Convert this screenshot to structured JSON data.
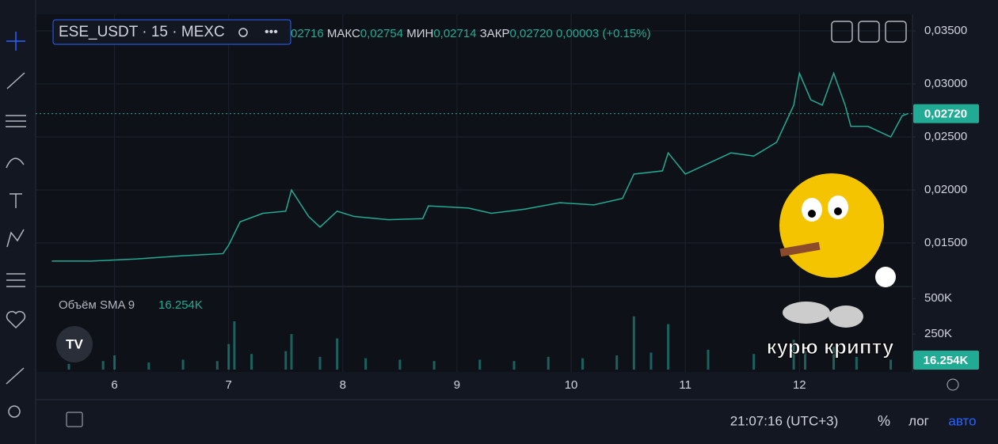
{
  "header": {
    "symbol": "ESE_USDT · 15 · MEXC",
    "ohlc": [
      "02716",
      "МАКС",
      "0,02754",
      "МИН",
      "0,02714",
      "ЗАКР",
      "0,02720",
      "0,00003 (+0.15%)"
    ]
  },
  "chart_data": [
    {
      "type": "line",
      "x": [
        5.45,
        5.8,
        6.2,
        6.6,
        6.95,
        7.0,
        7.1,
        7.3,
        7.5,
        7.55,
        7.7,
        7.8,
        7.95,
        8.1,
        8.4,
        8.7,
        8.75,
        9.1,
        9.3,
        9.6,
        9.9,
        10.2,
        10.45,
        10.55,
        10.8,
        10.85,
        11.0,
        11.2,
        11.4,
        11.6,
        11.8,
        11.95,
        12.0,
        12.1,
        12.2,
        12.3,
        12.4,
        12.45,
        12.6,
        12.8,
        12.9,
        12.95
      ],
      "series": [
        {
          "name": "ESE_USDT",
          "color": "#22ab94",
          "values": [
            0.0133,
            0.0133,
            0.0135,
            0.0138,
            0.014,
            0.0148,
            0.017,
            0.0178,
            0.018,
            0.02,
            0.0175,
            0.0165,
            0.018,
            0.0175,
            0.0172,
            0.0173,
            0.0185,
            0.0183,
            0.0178,
            0.0182,
            0.0188,
            0.0186,
            0.0192,
            0.0215,
            0.0218,
            0.0235,
            0.0215,
            0.0225,
            0.0235,
            0.0232,
            0.0245,
            0.028,
            0.031,
            0.0285,
            0.028,
            0.031,
            0.028,
            0.026,
            0.026,
            0.025,
            0.027,
            0.0272
          ]
        }
      ],
      "xlim": [
        5.42,
        12.99
      ],
      "xticks": [
        6,
        7,
        8,
        9,
        10,
        11,
        12
      ],
      "ylim": [
        0.0109,
        0.03657
      ],
      "yticks": [
        {
          "value": 0.015,
          "label": "0,01500"
        },
        {
          "value": 0.02,
          "label": "0,02000"
        },
        {
          "value": 0.025,
          "label": "0,02500"
        },
        {
          "value": 0.03,
          "label": "0,03000"
        },
        {
          "value": 0.035,
          "label": "0,03500"
        }
      ],
      "marker": {
        "value": 0.0272,
        "label": "0,02720"
      },
      "grid": true
    },
    {
      "type": "bar",
      "x": [
        5.6,
        5.9,
        6.0,
        6.3,
        6.6,
        6.9,
        7.0,
        7.05,
        7.2,
        7.5,
        7.55,
        7.8,
        7.95,
        8.2,
        8.5,
        8.8,
        9.2,
        9.5,
        9.8,
        10.1,
        10.4,
        10.55,
        10.7,
        10.85,
        11.2,
        11.6,
        11.95,
        12.05,
        12.3,
        12.5,
        12.8
      ],
      "series": [
        {
          "name": "Объём SMA 9",
          "color": "#26a69a",
          "values": [
            40000,
            60000,
            100000,
            50000,
            70000,
            60000,
            180000,
            340000,
            110000,
            130000,
            250000,
            90000,
            220000,
            80000,
            70000,
            60000,
            70000,
            60000,
            90000,
            80000,
            100000,
            375000,
            120000,
            320000,
            140000,
            110000,
            210000,
            130000,
            160000,
            90000,
            70000
          ]
        }
      ],
      "xlim": [
        5.42,
        12.99
      ],
      "ylim": [
        0,
        585000
      ],
      "yticks": [
        {
          "value": 250000,
          "label": "250K"
        },
        {
          "value": 500000,
          "label": "500K"
        }
      ],
      "marker": {
        "value": 16254,
        "label": "16.254K"
      }
    }
  ],
  "footer": {
    "time": "21:07:16 (UTC+3)",
    "percent": "%",
    "log": "лог",
    "auto": "авто"
  },
  "overlay": {
    "caption": "курю крипту"
  }
}
